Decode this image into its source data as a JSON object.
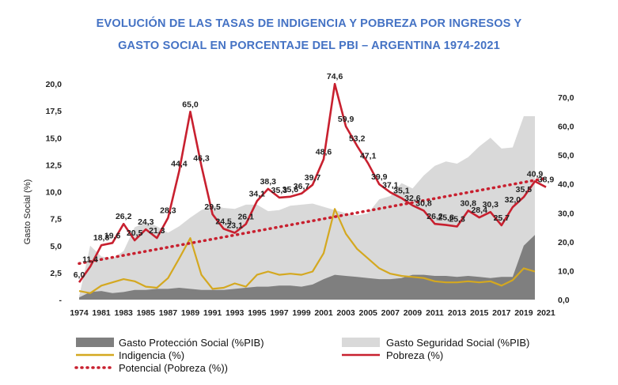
{
  "title_line1": "EVOLUCIÓN DE LAS TASAS DE INDIGENCIA Y POBREZA POR INGRESOS Y",
  "title_line2": "GASTO SOCIAL EN PORCENTAJE DEL PBI – ARGENTINA 1974-2021",
  "colors": {
    "title": "#4472c4",
    "pobreza": "#c8202f",
    "indigencia": "#d4a820",
    "proteccion": "#7f7f7f",
    "seguridad": "#d9d9d9"
  },
  "chart_data": {
    "type": "line",
    "ylabel": "Gasto Social (%)",
    "left_axis": {
      "range": [
        0,
        20
      ],
      "ticks": [
        "-",
        "2,5",
        "5,0",
        "7,5",
        "10,0",
        "12,5",
        "15,0",
        "17,5",
        "20,0"
      ]
    },
    "right_axis": {
      "range": [
        0,
        75
      ],
      "ticks": [
        "0,0",
        "10,0",
        "20,0",
        "30,0",
        "40,0",
        "50,0",
        "60,0",
        "70,0"
      ]
    },
    "x_ticks": [
      "1974",
      "1981",
      "1983",
      "1985",
      "1987",
      "1989",
      "1991",
      "1993",
      "1995",
      "1997",
      "1999",
      "2001",
      "2003",
      "2005",
      "2007",
      "2009",
      "2011",
      "2013",
      "2015",
      "2017",
      "2019",
      "2021"
    ],
    "series": [
      {
        "name": "Gasto Seguridad Social (%PIB)",
        "kind": "area",
        "axis": "left",
        "points": [
          [
            0,
            0.3
          ],
          [
            1,
            5.0
          ],
          [
            2,
            4.0
          ],
          [
            3,
            3.8
          ],
          [
            4,
            4.5
          ],
          [
            5,
            6.7
          ],
          [
            6,
            7.2
          ],
          [
            7,
            6.8
          ],
          [
            8,
            6.2
          ],
          [
            9,
            6.8
          ],
          [
            10,
            7.6
          ],
          [
            11,
            8.3
          ],
          [
            12,
            8.7
          ],
          [
            13,
            8.5
          ],
          [
            14,
            8.4
          ],
          [
            15,
            8.8
          ],
          [
            16,
            8.8
          ],
          [
            17,
            8.2
          ],
          [
            18,
            8.3
          ],
          [
            19,
            8.7
          ],
          [
            20,
            8.8
          ],
          [
            21,
            8.9
          ],
          [
            22,
            8.6
          ],
          [
            23,
            8.3
          ],
          [
            24,
            8.0
          ],
          [
            25,
            7.8
          ],
          [
            26,
            8.0
          ],
          [
            27,
            9.3
          ],
          [
            28,
            9.6
          ],
          [
            29,
            10.8
          ],
          [
            30,
            10.3
          ],
          [
            31,
            11.5
          ],
          [
            32,
            12.4
          ],
          [
            33,
            12.8
          ],
          [
            34,
            12.6
          ],
          [
            35,
            13.2
          ],
          [
            36,
            14.2
          ],
          [
            37,
            15.0
          ],
          [
            38,
            14.0
          ],
          [
            39,
            14.1
          ],
          [
            40,
            17.0
          ],
          [
            41,
            17.0
          ]
        ]
      },
      {
        "name": "Gasto Protección Social (%PIB)",
        "kind": "area",
        "axis": "left",
        "points": [
          [
            0,
            0.2
          ],
          [
            1,
            0.7
          ],
          [
            2,
            0.8
          ],
          [
            3,
            0.6
          ],
          [
            4,
            0.7
          ],
          [
            5,
            0.9
          ],
          [
            6,
            0.9
          ],
          [
            7,
            1.0
          ],
          [
            8,
            1.0
          ],
          [
            9,
            1.1
          ],
          [
            10,
            1.0
          ],
          [
            11,
            0.9
          ],
          [
            12,
            0.9
          ],
          [
            13,
            0.9
          ],
          [
            14,
            1.0
          ],
          [
            15,
            1.1
          ],
          [
            16,
            1.2
          ],
          [
            17,
            1.2
          ],
          [
            18,
            1.3
          ],
          [
            19,
            1.3
          ],
          [
            20,
            1.2
          ],
          [
            21,
            1.4
          ],
          [
            22,
            1.9
          ],
          [
            23,
            2.3
          ],
          [
            24,
            2.2
          ],
          [
            25,
            2.1
          ],
          [
            26,
            2.0
          ],
          [
            27,
            1.9
          ],
          [
            28,
            1.9
          ],
          [
            29,
            2.0
          ],
          [
            30,
            2.3
          ],
          [
            31,
            2.3
          ],
          [
            32,
            2.2
          ],
          [
            33,
            2.2
          ],
          [
            34,
            2.1
          ],
          [
            35,
            2.2
          ],
          [
            36,
            2.1
          ],
          [
            37,
            2.0
          ],
          [
            38,
            2.1
          ],
          [
            39,
            2.1
          ],
          [
            40,
            5.0
          ],
          [
            41,
            6.0
          ]
        ]
      },
      {
        "name": "Indigencia (%)",
        "kind": "line",
        "axis": "left",
        "points": [
          [
            0,
            0.8
          ],
          [
            1,
            0.6
          ],
          [
            2,
            1.3
          ],
          [
            3,
            1.6
          ],
          [
            4,
            1.9
          ],
          [
            5,
            1.7
          ],
          [
            6,
            1.2
          ],
          [
            7,
            1.1
          ],
          [
            8,
            2.0
          ],
          [
            9,
            3.8
          ],
          [
            10,
            5.7
          ],
          [
            11,
            2.3
          ],
          [
            12,
            1.0
          ],
          [
            13,
            1.1
          ],
          [
            14,
            1.5
          ],
          [
            15,
            1.2
          ],
          [
            16,
            2.3
          ],
          [
            17,
            2.6
          ],
          [
            18,
            2.3
          ],
          [
            19,
            2.4
          ],
          [
            20,
            2.3
          ],
          [
            21,
            2.6
          ],
          [
            22,
            4.3
          ],
          [
            23,
            8.4
          ],
          [
            24,
            6.1
          ],
          [
            25,
            4.7
          ],
          [
            26,
            3.8
          ],
          [
            27,
            2.9
          ],
          [
            28,
            2.4
          ],
          [
            29,
            2.2
          ],
          [
            30,
            2.1
          ],
          [
            31,
            2.0
          ],
          [
            32,
            1.7
          ],
          [
            33,
            1.6
          ],
          [
            34,
            1.6
          ],
          [
            35,
            1.7
          ],
          [
            36,
            1.6
          ],
          [
            37,
            1.7
          ],
          [
            38,
            1.3
          ],
          [
            39,
            1.8
          ],
          [
            40,
            2.9
          ],
          [
            41,
            2.6
          ]
        ]
      },
      {
        "name": "Pobreza (%)",
        "kind": "line",
        "axis": "right",
        "points": [
          [
            0,
            6.0
          ],
          [
            1,
            11.4
          ],
          [
            2,
            18.8
          ],
          [
            3,
            19.6
          ],
          [
            4,
            26.2
          ],
          [
            5,
            20.5
          ],
          [
            6,
            24.3
          ],
          [
            7,
            21.3
          ],
          [
            8,
            28.3
          ],
          [
            9,
            44.4
          ],
          [
            10,
            65.0
          ],
          [
            11,
            46.3
          ],
          [
            12,
            29.5
          ],
          [
            13,
            24.5
          ],
          [
            14,
            23.1
          ],
          [
            15,
            26.1
          ],
          [
            16,
            34.1
          ],
          [
            17,
            38.3
          ],
          [
            18,
            35.3
          ],
          [
            19,
            35.6
          ],
          [
            20,
            36.7
          ],
          [
            21,
            39.7
          ],
          [
            22,
            48.6
          ],
          [
            23,
            74.6
          ],
          [
            24,
            59.9
          ],
          [
            25,
            53.2
          ],
          [
            26,
            47.1
          ],
          [
            27,
            39.9
          ],
          [
            28,
            37.1
          ],
          [
            29,
            35.1
          ],
          [
            30,
            32.6
          ],
          [
            31,
            30.8
          ],
          [
            32,
            26.2
          ],
          [
            33,
            25.8
          ],
          [
            34,
            25.3
          ],
          [
            35,
            30.8
          ],
          [
            36,
            28.4
          ],
          [
            37,
            30.3
          ],
          [
            38,
            25.7
          ],
          [
            39,
            32.0
          ],
          [
            40,
            35.5
          ],
          [
            41,
            40.9
          ],
          [
            42,
            38.9
          ]
        ]
      },
      {
        "name": "Potencial (Pobreza (%))",
        "kind": "trend",
        "axis": "right",
        "from": [
          0,
          12.5
        ],
        "to": [
          42,
          42.0
        ]
      }
    ],
    "pobreza_labels": [
      "6,0",
      "11,4",
      "18,8",
      "19,6",
      "26,2",
      "20,5",
      "24,3",
      "21,3",
      "28,3",
      "44,4",
      "65,0",
      "46,3",
      "29,5",
      "24,5",
      "23,1",
      "26,1",
      "34,1",
      "38,3",
      "35,3",
      "35,6",
      "36,7",
      "39,7",
      "48,6",
      "74,6",
      "59,9",
      "53,2",
      "47,1",
      "39,9",
      "37,1",
      "35,1",
      "32,6",
      "30,8",
      "26,2",
      "25,8",
      "25,3",
      "30,8",
      "28,4",
      "30,3",
      "25,7",
      "32,0",
      "35,5",
      "40,9",
      "38,9"
    ]
  },
  "legend": {
    "proteccion": "Gasto Protección Social (%PIB)",
    "seguridad": "Gasto Seguridad Social (%PIB)",
    "indigencia": "Indigencia (%)",
    "pobreza": "Pobreza (%)",
    "potencial": "Potencial (Pobreza (%))"
  }
}
